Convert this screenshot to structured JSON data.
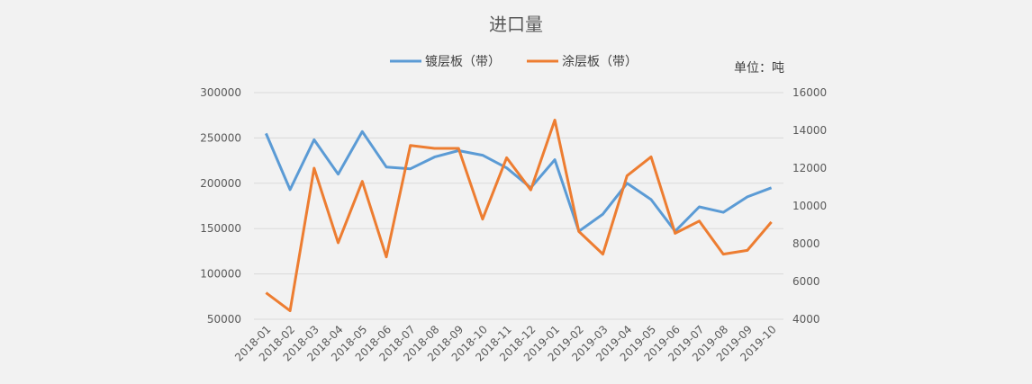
{
  "chart_data": {
    "type": "line",
    "title": "进口量",
    "unit_label": "单位：吨",
    "categories": [
      "2018-01",
      "2018-02",
      "2018-03",
      "2018-04",
      "2018-05",
      "2018-06",
      "2018-07",
      "2018-08",
      "2018-09",
      "2018-10",
      "2018-11",
      "2018-12",
      "2019-01",
      "2019-02",
      "2019-03",
      "2019-04",
      "2019-05",
      "2019-06",
      "2019-07",
      "2019-08",
      "2019-09",
      "2019-10"
    ],
    "y_left_ticks": [
      "50000",
      "100000",
      "150000",
      "200000",
      "250000",
      "300000"
    ],
    "y_right_ticks": [
      "4000",
      "6000",
      "8000",
      "10000",
      "12000",
      "14000",
      "16000"
    ],
    "ylim_left": [
      50000,
      300000
    ],
    "ylim_right": [
      4000,
      16000
    ],
    "grid": true,
    "legend_position": "top",
    "series": [
      {
        "name": "镀层板（带）",
        "axis": "left",
        "color": "#5b9bd5",
        "values": [
          255000,
          193000,
          248000,
          210000,
          257000,
          218000,
          216000,
          229000,
          236000,
          231000,
          217000,
          195000,
          226000,
          147000,
          166000,
          200000,
          182000,
          147000,
          174000,
          168000,
          185000,
          195000
        ]
      },
      {
        "name": "涂层板（带）",
        "axis": "right",
        "color": "#ed7d31",
        "values": [
          5400,
          4450,
          12000,
          8050,
          11300,
          7300,
          13200,
          13050,
          13050,
          9300,
          12550,
          10850,
          14550,
          8650,
          7450,
          11600,
          12600,
          8550,
          9200,
          7450,
          7650,
          9150
        ]
      }
    ]
  }
}
